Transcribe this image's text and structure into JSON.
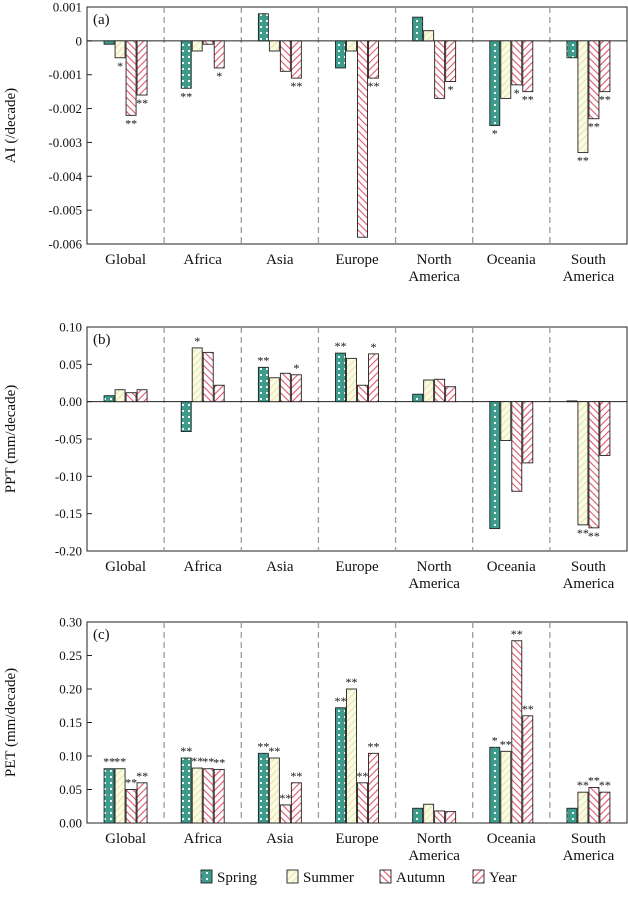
{
  "series_names": [
    "Spring",
    "Summer",
    "Autumn",
    "Year"
  ],
  "colors": {
    "spring_fill": "#3d9b8c",
    "spring_dot": "#ffffff",
    "summer_fill": "#fbfbe3",
    "summer_stripe": "#e6e4a8",
    "autumn_fill": "#ffffff",
    "autumn_stripe": "#e0566d",
    "year_fill": "#ffffff",
    "year_stripe": "#e0566d",
    "separator": "#9b9b9b"
  },
  "chart_data": [
    {
      "type": "bar",
      "panel_label": "(a)",
      "ylabel": "AI (/decade)",
      "ylim": [
        -0.006,
        0.001
      ],
      "yticks": [
        -0.006,
        -0.005,
        -0.004,
        -0.003,
        -0.002,
        -0.001,
        0,
        0.001
      ],
      "ytick_labels": [
        "-0.006",
        "-0.005",
        "-0.004",
        "-0.003",
        "-0.002",
        "-0.001",
        "0",
        "0.001"
      ],
      "categories": [
        "Global",
        "Africa",
        "Asia",
        "Europe",
        "North\nAmerica",
        "Oceania",
        "South\nAmerica"
      ],
      "series": [
        {
          "name": "Spring",
          "values": [
            -0.0001,
            -0.0014,
            0.0008,
            -0.0008,
            0.0007,
            -0.0025,
            -0.0005
          ],
          "sig": [
            "",
            "**",
            "",
            "",
            "",
            "*",
            ""
          ]
        },
        {
          "name": "Summer",
          "values": [
            -0.0005,
            -0.0003,
            -0.0003,
            -0.0003,
            0.0003,
            -0.0017,
            -0.0033
          ],
          "sig": [
            "*",
            "",
            "",
            "",
            "",
            "",
            "**"
          ]
        },
        {
          "name": "Autumn",
          "values": [
            -0.0022,
            -0.0001,
            -0.0009,
            -0.0058,
            -0.0017,
            -0.0013,
            -0.0023
          ],
          "sig": [
            "**",
            "",
            "",
            "",
            "",
            "*",
            "**"
          ]
        },
        {
          "name": "Year",
          "values": [
            -0.0016,
            -0.0008,
            -0.0011,
            -0.0011,
            -0.0012,
            -0.0015,
            -0.0015
          ],
          "sig": [
            "**",
            "*",
            "**",
            "**",
            "*",
            "**",
            "**"
          ]
        }
      ]
    },
    {
      "type": "bar",
      "panel_label": "(b)",
      "ylabel": "PPT (mm/decade)",
      "ylim": [
        -0.2,
        0.1
      ],
      "yticks": [
        -0.2,
        -0.15,
        -0.1,
        -0.05,
        0,
        0.05,
        0.1
      ],
      "ytick_labels": [
        "-0.20",
        "-0.15",
        "-0.10",
        "-0.05",
        "0.00",
        "0.05",
        "0.10"
      ],
      "categories": [
        "Global",
        "Africa",
        "Asia",
        "Europe",
        "North\nAmerica",
        "Oceania",
        "South\nAmerica"
      ],
      "series": [
        {
          "name": "Spring",
          "values": [
            0.008,
            -0.04,
            0.046,
            0.065,
            0.01,
            -0.17,
            0.001
          ],
          "sig": [
            "",
            "",
            "**",
            "**",
            "",
            "",
            ""
          ]
        },
        {
          "name": "Summer",
          "values": [
            0.016,
            0.072,
            0.032,
            0.058,
            0.029,
            -0.052,
            -0.165
          ],
          "sig": [
            "",
            "*",
            "",
            "",
            "",
            "",
            "**"
          ]
        },
        {
          "name": "Autumn",
          "values": [
            0.012,
            0.066,
            0.038,
            0.022,
            0.03,
            -0.12,
            -0.169
          ],
          "sig": [
            "",
            "",
            "",
            "",
            "",
            "",
            "**"
          ]
        },
        {
          "name": "Year",
          "values": [
            0.016,
            0.022,
            0.036,
            0.064,
            0.02,
            -0.082,
            -0.072
          ],
          "sig": [
            "",
            "",
            "*",
            "*",
            "",
            "",
            ""
          ]
        }
      ]
    },
    {
      "type": "bar",
      "panel_label": "(c)",
      "ylabel": "PET (mm/decade)",
      "ylim": [
        0,
        0.3
      ],
      "yticks": [
        0,
        0.05,
        0.1,
        0.15,
        0.2,
        0.25,
        0.3
      ],
      "ytick_labels": [
        "0.00",
        "0.05",
        "0.10",
        "0.15",
        "0.20",
        "0.25",
        "0.30"
      ],
      "categories": [
        "Global",
        "Africa",
        "Asia",
        "Europe",
        "North\nAmerica",
        "Oceania",
        "South\nAmerica"
      ],
      "series": [
        {
          "name": "Spring",
          "values": [
            0.081,
            0.097,
            0.104,
            0.172,
            0.022,
            0.113,
            0.022
          ],
          "sig": [
            "**",
            "**",
            "**",
            "**",
            "",
            "*",
            ""
          ]
        },
        {
          "name": "Summer",
          "values": [
            0.081,
            0.082,
            0.097,
            0.2,
            0.028,
            0.107,
            0.046
          ],
          "sig": [
            "**",
            "**",
            "**",
            "**",
            "",
            "**",
            "**"
          ]
        },
        {
          "name": "Autumn",
          "values": [
            0.05,
            0.081,
            0.027,
            0.06,
            0.018,
            0.272,
            0.053
          ],
          "sig": [
            "**",
            "**",
            "**",
            "**",
            "",
            "**",
            "**"
          ]
        },
        {
          "name": "Year",
          "values": [
            0.06,
            0.08,
            0.06,
            0.104,
            0.017,
            0.16,
            0.046
          ],
          "sig": [
            "**",
            "**",
            "**",
            "**",
            "",
            "**",
            "**"
          ]
        }
      ]
    }
  ]
}
